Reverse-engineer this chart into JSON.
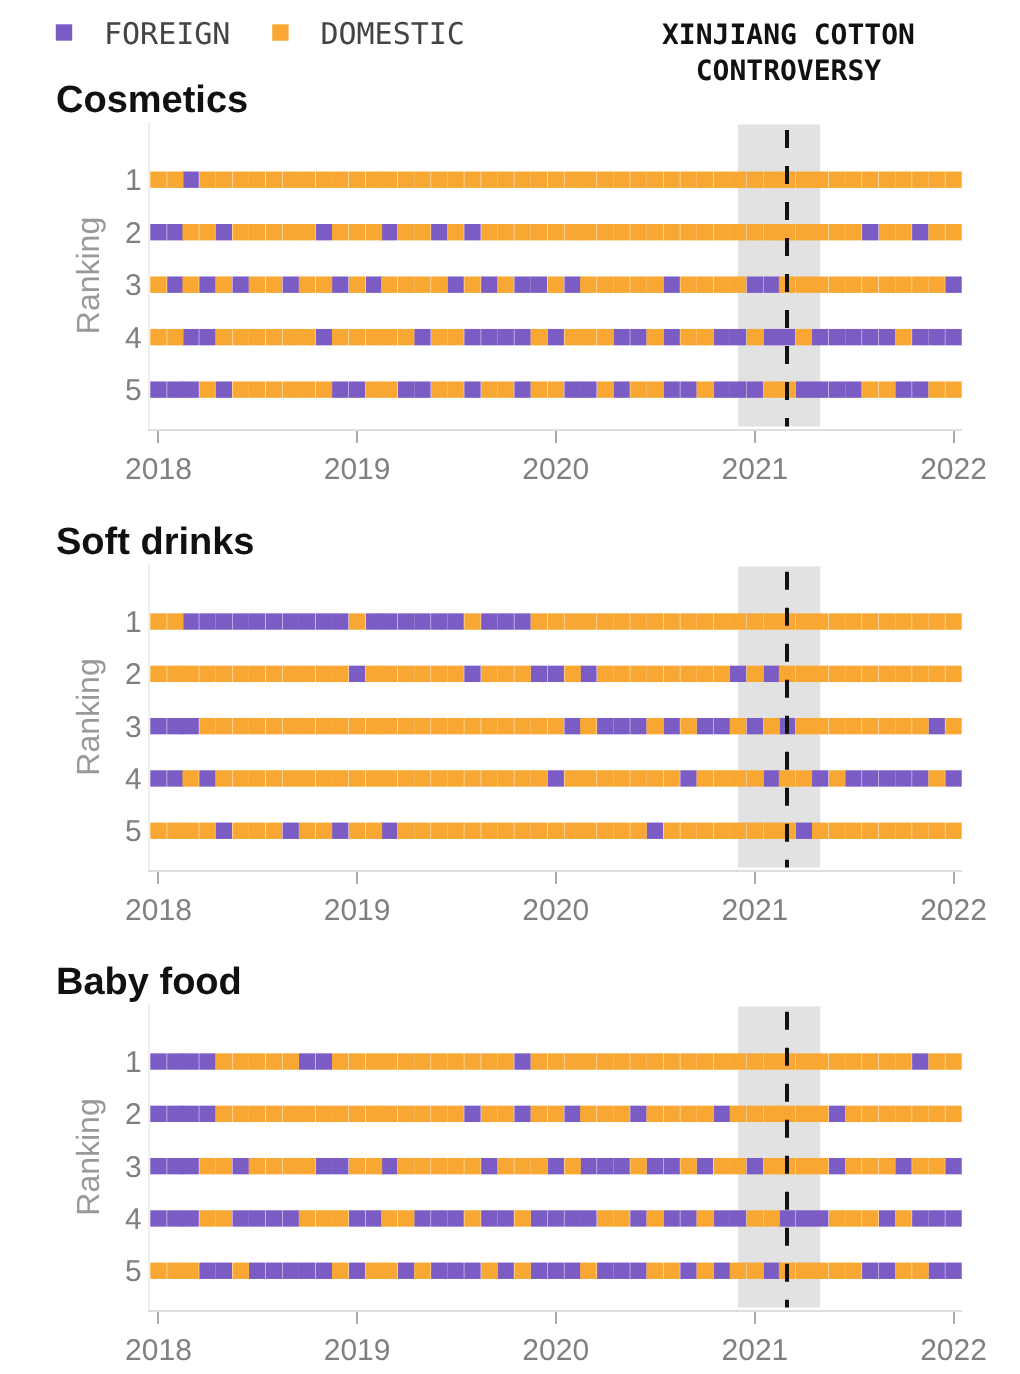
{
  "chart_data": [
    {
      "type": "scatter",
      "title": "Cosmetics",
      "ylabel": "Ranking",
      "marker": "square",
      "legend": "top left",
      "x": [
        "2018-01",
        "2018-02",
        "2018-03",
        "2018-04",
        "2018-05",
        "2018-06",
        "2018-07",
        "2018-08",
        "2018-09",
        "2018-10",
        "2018-11",
        "2018-12",
        "2019-01",
        "2019-02",
        "2019-03",
        "2019-04",
        "2019-05",
        "2019-06",
        "2019-07",
        "2019-08",
        "2019-09",
        "2019-10",
        "2019-11",
        "2019-12",
        "2020-01",
        "2020-02",
        "2020-03",
        "2020-04",
        "2020-05",
        "2020-06",
        "2020-07",
        "2020-08",
        "2020-09",
        "2020-10",
        "2020-11",
        "2020-12",
        "2021-01",
        "2021-02",
        "2021-03",
        "2021-04",
        "2021-05",
        "2021-06",
        "2021-07",
        "2021-08",
        "2021-09",
        "2021-10",
        "2021-11",
        "2021-12",
        "2022-01"
      ],
      "series": [
        {
          "name": "FOREIGN",
          "color": "#7b5cc4",
          "values": [
            null,
            null,
            1,
            null,
            null,
            null,
            null,
            null,
            null,
            null,
            null,
            null,
            null,
            null,
            null,
            null,
            null,
            null,
            null,
            null,
            null,
            null,
            null,
            null,
            null,
            null,
            null,
            null,
            null,
            null,
            null,
            null,
            null,
            null,
            null,
            null,
            null,
            null,
            null,
            null,
            null,
            null,
            null,
            null,
            null,
            null,
            null,
            null,
            null
          ]
        },
        {
          "name": "DOMESTIC",
          "color": "#f8a832",
          "values": [
            1,
            1,
            null,
            1,
            1,
            1,
            1,
            1,
            1,
            1,
            1,
            1,
            1,
            1,
            1,
            1,
            1,
            1,
            1,
            1,
            1,
            1,
            1,
            1,
            1,
            1,
            1,
            1,
            1,
            1,
            1,
            1,
            1,
            1,
            1,
            1,
            1,
            1,
            1,
            1,
            1,
            1,
            1,
            1,
            1,
            1,
            1,
            1,
            1
          ]
        },
        {
          "color": "#7b5cc4",
          "values": [
            2,
            2,
            null,
            null,
            2,
            null,
            null,
            null,
            null,
            null,
            2,
            null,
            null,
            null,
            2,
            null,
            null,
            2,
            null,
            2,
            null,
            null,
            null,
            null,
            null,
            null,
            null,
            null,
            null,
            null,
            null,
            null,
            null,
            null,
            null,
            null,
            null,
            null,
            null,
            null,
            null,
            null,
            null,
            2,
            null,
            null,
            2,
            null,
            null
          ]
        },
        {
          "color": "#f8a832",
          "values": [
            null,
            null,
            2,
            2,
            null,
            2,
            2,
            2,
            2,
            2,
            null,
            2,
            2,
            2,
            null,
            2,
            2,
            null,
            2,
            null,
            2,
            2,
            2,
            2,
            2,
            2,
            2,
            2,
            2,
            2,
            2,
            2,
            2,
            2,
            2,
            2,
            2,
            2,
            2,
            2,
            2,
            2,
            2,
            null,
            2,
            2,
            null,
            2,
            2
          ]
        },
        {
          "color": "#7b5cc4",
          "values": [
            null,
            3,
            null,
            3,
            null,
            3,
            null,
            null,
            3,
            null,
            null,
            3,
            null,
            3,
            null,
            null,
            null,
            null,
            3,
            null,
            3,
            null,
            3,
            3,
            null,
            3,
            null,
            null,
            null,
            null,
            null,
            3,
            null,
            null,
            null,
            null,
            3,
            3,
            null,
            null,
            null,
            null,
            null,
            null,
            null,
            null,
            null,
            null,
            3
          ]
        },
        {
          "color": "#f8a832",
          "values": [
            3,
            null,
            3,
            null,
            3,
            null,
            3,
            3,
            null,
            3,
            3,
            null,
            3,
            null,
            3,
            3,
            3,
            3,
            null,
            3,
            null,
            3,
            null,
            null,
            3,
            null,
            3,
            3,
            3,
            3,
            3,
            null,
            3,
            3,
            3,
            3,
            null,
            null,
            3,
            3,
            3,
            3,
            3,
            3,
            3,
            3,
            3,
            3,
            null
          ]
        },
        {
          "color": "#7b5cc4",
          "values": [
            null,
            null,
            4,
            4,
            null,
            null,
            null,
            null,
            null,
            null,
            4,
            null,
            null,
            null,
            null,
            null,
            4,
            null,
            null,
            4,
            4,
            4,
            4,
            null,
            4,
            null,
            null,
            null,
            4,
            4,
            null,
            4,
            null,
            null,
            4,
            4,
            null,
            4,
            4,
            null,
            4,
            4,
            4,
            4,
            4,
            null,
            4,
            4,
            4
          ]
        },
        {
          "color": "#f8a832",
          "values": [
            4,
            4,
            null,
            null,
            4,
            4,
            4,
            4,
            4,
            4,
            null,
            4,
            4,
            4,
            4,
            4,
            null,
            4,
            4,
            null,
            null,
            null,
            null,
            4,
            null,
            4,
            4,
            4,
            null,
            null,
            4,
            null,
            4,
            4,
            null,
            null,
            4,
            null,
            null,
            4,
            null,
            null,
            null,
            null,
            null,
            4,
            null,
            null,
            null
          ]
        },
        {
          "color": "#7b5cc4",
          "values": [
            5,
            5,
            5,
            null,
            5,
            null,
            null,
            null,
            null,
            null,
            null,
            5,
            5,
            null,
            null,
            5,
            5,
            null,
            null,
            5,
            null,
            null,
            5,
            null,
            null,
            5,
            5,
            null,
            5,
            null,
            null,
            5,
            5,
            null,
            5,
            5,
            5,
            null,
            null,
            5,
            5,
            5,
            5,
            null,
            null,
            5,
            5,
            null,
            null
          ]
        },
        {
          "color": "#f8a832",
          "values": [
            null,
            null,
            null,
            5,
            null,
            5,
            5,
            5,
            5,
            5,
            5,
            null,
            null,
            5,
            5,
            null,
            null,
            5,
            5,
            null,
            5,
            5,
            null,
            5,
            5,
            null,
            null,
            5,
            null,
            5,
            5,
            null,
            null,
            5,
            null,
            null,
            null,
            5,
            5,
            null,
            null,
            null,
            null,
            5,
            5,
            null,
            null,
            5,
            5
          ]
        }
      ],
      "ylim": [
        5.75,
        -0.1
      ],
      "yticks": [
        1,
        2,
        3,
        4,
        5
      ],
      "xlim": [
        "2017-12-16",
        "2022-01-16"
      ],
      "xticks": [
        "2018",
        "2019",
        "2020",
        "2021",
        "2022"
      ],
      "ref_lines": [
        {
          "axis": "x",
          "value": "2021-03",
          "label": "XINJIANG COTTON CONTROVERSY",
          "color": "#111111",
          "line_style": "dashed"
        }
      ],
      "bands": [
        {
          "axis": "x",
          "from": "2020-12",
          "to": "2021-05",
          "color": "#e2e2e2"
        }
      ]
    },
    {
      "type": "scatter",
      "title": "Soft drinks",
      "ylabel": "Ranking",
      "marker": "square",
      "x": [
        "2018-01",
        "2018-02",
        "2018-03",
        "2018-04",
        "2018-05",
        "2018-06",
        "2018-07",
        "2018-08",
        "2018-09",
        "2018-10",
        "2018-11",
        "2018-12",
        "2019-01",
        "2019-02",
        "2019-03",
        "2019-04",
        "2019-05",
        "2019-06",
        "2019-07",
        "2019-08",
        "2019-09",
        "2019-10",
        "2019-11",
        "2019-12",
        "2020-01",
        "2020-02",
        "2020-03",
        "2020-04",
        "2020-05",
        "2020-06",
        "2020-07",
        "2020-08",
        "2020-09",
        "2020-10",
        "2020-11",
        "2020-12",
        "2021-01",
        "2021-02",
        "2021-03",
        "2021-04",
        "2021-05",
        "2021-06",
        "2021-07",
        "2021-08",
        "2021-09",
        "2021-10",
        "2021-11",
        "2021-12",
        "2022-01"
      ],
      "series": [
        {
          "color": "#7b5cc4",
          "values": [
            null,
            null,
            1,
            1,
            1,
            1,
            1,
            1,
            1,
            1,
            1,
            1,
            null,
            1,
            1,
            1,
            1,
            1,
            1,
            null,
            1,
            1,
            1,
            null,
            null,
            null,
            null,
            null,
            null,
            null,
            null,
            null,
            null,
            null,
            null,
            null,
            null,
            null,
            null,
            null,
            null,
            null,
            null,
            null,
            null,
            null,
            null,
            null,
            null
          ]
        },
        {
          "color": "#f8a832",
          "values": [
            1,
            1,
            null,
            null,
            null,
            null,
            null,
            null,
            null,
            null,
            null,
            null,
            1,
            null,
            null,
            null,
            null,
            null,
            null,
            1,
            null,
            null,
            null,
            1,
            1,
            1,
            1,
            1,
            1,
            1,
            1,
            1,
            1,
            1,
            1,
            1,
            1,
            1,
            1,
            1,
            1,
            1,
            1,
            1,
            1,
            1,
            1,
            1,
            1
          ]
        },
        {
          "color": "#7b5cc4",
          "values": [
            null,
            null,
            null,
            null,
            null,
            null,
            null,
            null,
            null,
            null,
            null,
            null,
            2,
            null,
            null,
            null,
            null,
            null,
            null,
            2,
            null,
            null,
            null,
            2,
            2,
            null,
            2,
            null,
            null,
            null,
            null,
            null,
            null,
            null,
            null,
            2,
            null,
            2,
            null,
            null,
            null,
            null,
            null,
            null,
            null,
            null,
            null,
            null,
            null
          ]
        },
        {
          "color": "#f8a832",
          "values": [
            2,
            2,
            2,
            2,
            2,
            2,
            2,
            2,
            2,
            2,
            2,
            2,
            null,
            2,
            2,
            2,
            2,
            2,
            2,
            null,
            2,
            2,
            2,
            null,
            null,
            2,
            null,
            2,
            2,
            2,
            2,
            2,
            2,
            2,
            2,
            null,
            2,
            null,
            2,
            2,
            2,
            2,
            2,
            2,
            2,
            2,
            2,
            2,
            2
          ]
        },
        {
          "color": "#7b5cc4",
          "values": [
            3,
            3,
            3,
            null,
            null,
            null,
            null,
            null,
            null,
            null,
            null,
            null,
            null,
            null,
            null,
            null,
            null,
            null,
            null,
            null,
            null,
            null,
            null,
            null,
            null,
            3,
            null,
            3,
            3,
            3,
            null,
            3,
            null,
            3,
            3,
            null,
            3,
            null,
            3,
            null,
            null,
            null,
            null,
            null,
            null,
            null,
            null,
            3,
            null
          ]
        },
        {
          "color": "#f8a832",
          "values": [
            null,
            null,
            null,
            3,
            3,
            3,
            3,
            3,
            3,
            3,
            3,
            3,
            3,
            3,
            3,
            3,
            3,
            3,
            3,
            3,
            3,
            3,
            3,
            3,
            3,
            null,
            3,
            null,
            null,
            null,
            3,
            null,
            3,
            null,
            null,
            3,
            null,
            3,
            null,
            3,
            3,
            3,
            3,
            3,
            3,
            3,
            3,
            null,
            3
          ]
        },
        {
          "color": "#7b5cc4",
          "values": [
            4,
            4,
            null,
            4,
            null,
            null,
            null,
            null,
            null,
            null,
            null,
            null,
            null,
            null,
            null,
            null,
            null,
            null,
            null,
            null,
            null,
            null,
            null,
            null,
            4,
            null,
            null,
            null,
            null,
            null,
            null,
            null,
            4,
            null,
            null,
            null,
            null,
            4,
            null,
            null,
            4,
            null,
            4,
            4,
            4,
            4,
            4,
            null,
            4
          ]
        },
        {
          "color": "#f8a832",
          "values": [
            null,
            null,
            4,
            null,
            4,
            4,
            4,
            4,
            4,
            4,
            4,
            4,
            4,
            4,
            4,
            4,
            4,
            4,
            4,
            4,
            4,
            4,
            4,
            4,
            null,
            4,
            4,
            4,
            4,
            4,
            4,
            4,
            null,
            4,
            4,
            4,
            4,
            null,
            4,
            4,
            null,
            4,
            null,
            null,
            null,
            null,
            null,
            4,
            null
          ]
        },
        {
          "color": "#7b5cc4",
          "values": [
            null,
            null,
            null,
            null,
            5,
            null,
            null,
            null,
            5,
            null,
            null,
            5,
            null,
            null,
            5,
            null,
            null,
            null,
            null,
            null,
            null,
            null,
            null,
            null,
            null,
            null,
            null,
            null,
            null,
            null,
            5,
            null,
            null,
            null,
            null,
            null,
            null,
            null,
            null,
            5,
            null,
            null,
            null,
            null,
            null,
            null,
            null,
            null,
            null
          ]
        },
        {
          "color": "#f8a832",
          "values": [
            5,
            5,
            5,
            5,
            null,
            5,
            5,
            5,
            null,
            5,
            5,
            null,
            5,
            5,
            null,
            5,
            5,
            5,
            5,
            5,
            5,
            5,
            5,
            5,
            5,
            5,
            5,
            5,
            5,
            5,
            null,
            5,
            5,
            5,
            5,
            5,
            5,
            5,
            5,
            null,
            5,
            5,
            5,
            5,
            5,
            5,
            5,
            5,
            5
          ]
        }
      ],
      "ylim": [
        5.75,
        -0.1
      ],
      "yticks": [
        1,
        2,
        3,
        4,
        5
      ],
      "xlim": [
        "2017-12-16",
        "2022-01-16"
      ],
      "xticks": [
        "2018",
        "2019",
        "2020",
        "2021",
        "2022"
      ],
      "ref_lines": [
        {
          "axis": "x",
          "value": "2021-03",
          "label": null,
          "color": "#111111",
          "line_style": "dashed"
        }
      ],
      "bands": [
        {
          "axis": "x",
          "from": "2020-12",
          "to": "2021-05",
          "color": "#e2e2e2"
        }
      ]
    },
    {
      "type": "scatter",
      "title": "Baby food",
      "ylabel": "Ranking",
      "marker": "square",
      "x": [
        "2018-01",
        "2018-02",
        "2018-03",
        "2018-04",
        "2018-05",
        "2018-06",
        "2018-07",
        "2018-08",
        "2018-09",
        "2018-10",
        "2018-11",
        "2018-12",
        "2019-01",
        "2019-02",
        "2019-03",
        "2019-04",
        "2019-05",
        "2019-06",
        "2019-07",
        "2019-08",
        "2019-09",
        "2019-10",
        "2019-11",
        "2019-12",
        "2020-01",
        "2020-02",
        "2020-03",
        "2020-04",
        "2020-05",
        "2020-06",
        "2020-07",
        "2020-08",
        "2020-09",
        "2020-10",
        "2020-11",
        "2020-12",
        "2021-01",
        "2021-02",
        "2021-03",
        "2021-04",
        "2021-05",
        "2021-06",
        "2021-07",
        "2021-08",
        "2021-09",
        "2021-10",
        "2021-11",
        "2021-12",
        "2022-01"
      ],
      "series": [
        {
          "color": "#7b5cc4",
          "values": [
            1,
            1,
            1,
            1,
            null,
            null,
            null,
            null,
            null,
            1,
            1,
            null,
            null,
            null,
            null,
            null,
            null,
            null,
            null,
            null,
            null,
            null,
            1,
            null,
            null,
            null,
            null,
            null,
            null,
            null,
            null,
            null,
            null,
            null,
            null,
            null,
            null,
            null,
            null,
            null,
            null,
            null,
            null,
            null,
            null,
            null,
            1,
            null,
            null
          ]
        },
        {
          "color": "#f8a832",
          "values": [
            null,
            null,
            null,
            null,
            1,
            1,
            1,
            1,
            1,
            null,
            null,
            1,
            1,
            1,
            1,
            1,
            1,
            1,
            1,
            1,
            1,
            1,
            null,
            1,
            1,
            1,
            1,
            1,
            1,
            1,
            1,
            1,
            1,
            1,
            1,
            1,
            1,
            1,
            1,
            1,
            1,
            1,
            1,
            1,
            1,
            1,
            null,
            1,
            1
          ]
        },
        {
          "color": "#7b5cc4",
          "values": [
            2,
            2,
            2,
            2,
            null,
            null,
            null,
            null,
            null,
            null,
            null,
            null,
            null,
            null,
            null,
            null,
            null,
            null,
            null,
            2,
            null,
            null,
            2,
            null,
            null,
            2,
            null,
            null,
            null,
            2,
            null,
            null,
            null,
            null,
            2,
            null,
            null,
            null,
            null,
            null,
            null,
            2,
            null,
            null,
            null,
            null,
            null,
            null,
            null
          ]
        },
        {
          "color": "#f8a832",
          "values": [
            null,
            null,
            null,
            null,
            2,
            2,
            2,
            2,
            2,
            2,
            2,
            2,
            2,
            2,
            2,
            2,
            2,
            2,
            2,
            null,
            2,
            2,
            null,
            2,
            2,
            null,
            2,
            2,
            2,
            null,
            2,
            2,
            2,
            2,
            null,
            2,
            2,
            2,
            2,
            2,
            2,
            null,
            2,
            2,
            2,
            2,
            2,
            2,
            2
          ]
        },
        {
          "color": "#7b5cc4",
          "values": [
            3,
            3,
            3,
            null,
            null,
            3,
            null,
            null,
            null,
            null,
            3,
            3,
            null,
            null,
            3,
            null,
            null,
            null,
            null,
            null,
            3,
            null,
            null,
            null,
            3,
            null,
            3,
            3,
            3,
            null,
            3,
            3,
            null,
            3,
            null,
            null,
            3,
            null,
            null,
            null,
            null,
            3,
            null,
            null,
            null,
            3,
            null,
            null,
            3
          ]
        },
        {
          "color": "#f8a832",
          "values": [
            null,
            null,
            null,
            3,
            3,
            null,
            3,
            3,
            3,
            3,
            null,
            null,
            3,
            3,
            null,
            3,
            3,
            3,
            3,
            3,
            null,
            3,
            3,
            3,
            null,
            3,
            null,
            null,
            null,
            3,
            null,
            null,
            3,
            null,
            3,
            3,
            null,
            3,
            3,
            3,
            3,
            null,
            3,
            3,
            3,
            null,
            3,
            3,
            null
          ]
        },
        {
          "color": "#7b5cc4",
          "values": [
            4,
            4,
            4,
            null,
            null,
            4,
            4,
            4,
            4,
            null,
            null,
            null,
            4,
            4,
            null,
            null,
            4,
            4,
            4,
            null,
            4,
            4,
            null,
            4,
            4,
            4,
            4,
            null,
            null,
            4,
            null,
            4,
            4,
            null,
            4,
            4,
            null,
            null,
            4,
            4,
            4,
            null,
            null,
            null,
            4,
            null,
            4,
            4,
            4
          ]
        },
        {
          "color": "#f8a832",
          "values": [
            null,
            null,
            null,
            4,
            4,
            null,
            null,
            null,
            null,
            4,
            4,
            4,
            null,
            null,
            4,
            4,
            null,
            null,
            null,
            4,
            null,
            null,
            4,
            null,
            null,
            null,
            null,
            4,
            4,
            null,
            4,
            null,
            null,
            4,
            null,
            null,
            4,
            4,
            null,
            null,
            null,
            4,
            4,
            4,
            null,
            4,
            null,
            null,
            null
          ]
        },
        {
          "color": "#7b5cc4",
          "values": [
            null,
            null,
            null,
            5,
            5,
            null,
            5,
            5,
            5,
            5,
            5,
            null,
            5,
            null,
            null,
            5,
            null,
            5,
            5,
            5,
            null,
            5,
            null,
            5,
            5,
            5,
            null,
            5,
            5,
            5,
            null,
            null,
            5,
            null,
            5,
            null,
            null,
            5,
            null,
            null,
            null,
            null,
            null,
            5,
            5,
            null,
            null,
            5,
            5
          ]
        },
        {
          "color": "#f8a832",
          "values": [
            5,
            5,
            5,
            null,
            null,
            5,
            null,
            null,
            null,
            null,
            null,
            5,
            null,
            5,
            5,
            null,
            5,
            null,
            null,
            null,
            5,
            null,
            5,
            null,
            null,
            null,
            5,
            null,
            null,
            null,
            5,
            5,
            null,
            5,
            null,
            5,
            5,
            null,
            5,
            5,
            5,
            5,
            5,
            null,
            null,
            5,
            5,
            null,
            null
          ]
        }
      ],
      "ylim": [
        5.75,
        -0.1
      ],
      "yticks": [
        1,
        2,
        3,
        4,
        5
      ],
      "xlim": [
        "2017-12-16",
        "2022-01-16"
      ],
      "xticks": [
        "2018",
        "2019",
        "2020",
        "2021",
        "2022"
      ],
      "ref_lines": [
        {
          "axis": "x",
          "value": "2021-03",
          "label": null,
          "color": "#111111",
          "line_style": "dashed"
        }
      ],
      "bands": [
        {
          "axis": "x",
          "from": "2020-12",
          "to": "2021-05",
          "color": "#e2e2e2"
        }
      ]
    }
  ]
}
